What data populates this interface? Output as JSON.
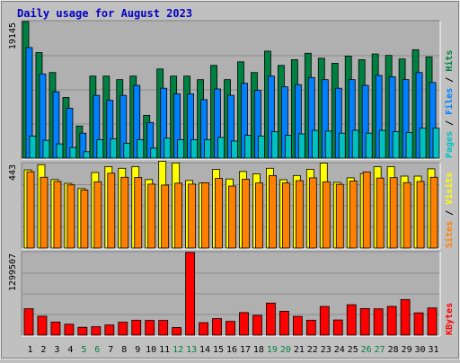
{
  "title": "Daily usage for August 2023",
  "colors": {
    "background": "#c0c0c0",
    "plot_bg": "#b0b0b0",
    "title": "#0000c0",
    "hits": "#008040",
    "files": "#0080ff",
    "pages": "#00c0c0",
    "visits": "#ffff00",
    "sites": "#ff8000",
    "kbytes": "#ff0000",
    "weekend_label": "#008040",
    "weekday_label": "#000000",
    "separator": "#000000"
  },
  "chart_data": [
    {
      "type": "bar",
      "panel": "hits-files-pages",
      "categories": [
        "1",
        "2",
        "3",
        "4",
        "5",
        "6",
        "7",
        "8",
        "9",
        "10",
        "11",
        "12",
        "13",
        "14",
        "15",
        "16",
        "17",
        "18",
        "19",
        "20",
        "21",
        "22",
        "23",
        "24",
        "25",
        "26",
        "27",
        "28",
        "29",
        "30",
        "31"
      ],
      "weekend_days": [
        "5",
        "6",
        "12",
        "13",
        "19",
        "20",
        "26",
        "27"
      ],
      "ylim": [
        0,
        19145
      ],
      "y_tick_label": "19145",
      "axis_label_parts": [
        "Pages",
        "Files",
        "Hits"
      ],
      "series": [
        {
          "name": "Hits",
          "values": [
            19145,
            14800,
            12000,
            8500,
            4500,
            11500,
            11500,
            11000,
            11500,
            6000,
            12500,
            11500,
            11500,
            11000,
            13000,
            11000,
            13500,
            12000,
            15000,
            13000,
            13800,
            14700,
            14000,
            13300,
            14300,
            13800,
            14600,
            14400,
            13900,
            15200,
            14200
          ]
        },
        {
          "name": "Files",
          "values": [
            15500,
            11800,
            9300,
            7000,
            3500,
            8800,
            8100,
            8800,
            10200,
            5000,
            9800,
            9000,
            9000,
            8200,
            9700,
            8800,
            10500,
            9500,
            11500,
            10000,
            10300,
            11300,
            11000,
            9800,
            11000,
            10200,
            11600,
            11400,
            11000,
            12000,
            10600
          ]
        },
        {
          "name": "Pages",
          "values": [
            3100,
            2500,
            2000,
            1500,
            900,
            2600,
            2700,
            2100,
            2600,
            1400,
            2800,
            2600,
            2600,
            2600,
            2900,
            2400,
            3200,
            3100,
            3700,
            3200,
            3400,
            3900,
            3800,
            3500,
            3900,
            3500,
            3900,
            3700,
            3600,
            4200,
            4200
          ]
        }
      ]
    },
    {
      "type": "bar",
      "panel": "visits-sites",
      "categories": [
        "1",
        "2",
        "3",
        "4",
        "5",
        "6",
        "7",
        "8",
        "9",
        "10",
        "11",
        "12",
        "13",
        "14",
        "15",
        "16",
        "17",
        "18",
        "19",
        "20",
        "21",
        "22",
        "23",
        "24",
        "25",
        "26",
        "27",
        "28",
        "29",
        "30",
        "31"
      ],
      "ylim": [
        0,
        443
      ],
      "y_tick_label": "443",
      "axis_label_parts": [
        "Sites",
        "Visits"
      ],
      "series": [
        {
          "name": "Visits",
          "values": [
            410,
            437,
            359,
            339,
            312,
            396,
            427,
            418,
            427,
            359,
            455,
            446,
            354,
            341,
            412,
            362,
            401,
            389,
            418,
            358,
            380,
            413,
            445,
            344,
            368,
            390,
            426,
            427,
            377,
            377,
            415
          ]
        },
        {
          "name": "Sites",
          "values": [
            400,
            371,
            349,
            331,
            304,
            347,
            392,
            371,
            370,
            335,
            330,
            340,
            335,
            342,
            365,
            325,
            361,
            341,
            380,
            341,
            353,
            368,
            347,
            334,
            351,
            399,
            367,
            369,
            343,
            349,
            371
          ]
        }
      ]
    },
    {
      "type": "bar",
      "panel": "kbytes",
      "categories": [
        "1",
        "2",
        "3",
        "4",
        "5",
        "6",
        "7",
        "8",
        "9",
        "10",
        "11",
        "12",
        "13",
        "14",
        "15",
        "16",
        "17",
        "18",
        "19",
        "20",
        "21",
        "22",
        "23",
        "24",
        "25",
        "26",
        "27",
        "28",
        "29",
        "30",
        "31"
      ],
      "ylim": [
        0,
        1299507
      ],
      "y_tick_label": "1299507",
      "axis_label_parts": [
        "KBytes"
      ],
      "series": [
        {
          "name": "KBytes",
          "values": [
            415000,
            298000,
            206000,
            172000,
            124000,
            132000,
            160000,
            204000,
            235000,
            232000,
            232000,
            120000,
            1299507,
            196000,
            260000,
            217000,
            355000,
            312000,
            504000,
            376000,
            295000,
            235000,
            451000,
            239000,
            478000,
            418000,
            414000,
            452000,
            560000,
            351000,
            428000
          ]
        }
      ]
    }
  ]
}
